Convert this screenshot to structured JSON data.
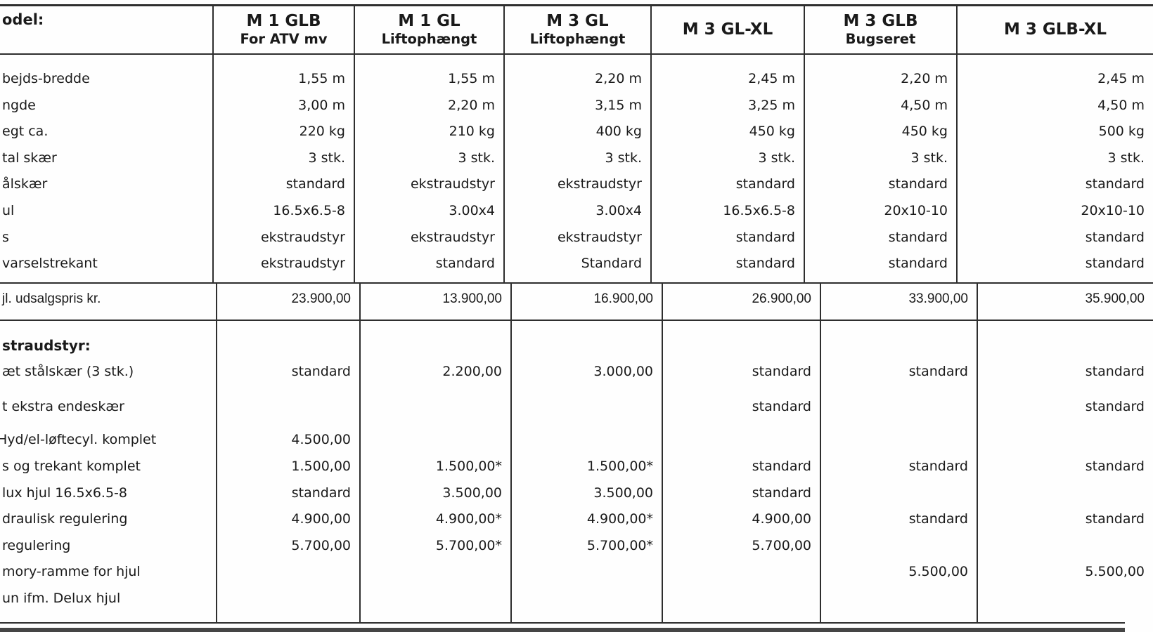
{
  "colors": {
    "border": "#2e2e2e",
    "text": "#1a1a1a",
    "bottom_bar": "#454545"
  },
  "header": {
    "model_label": "odel:",
    "columns": [
      {
        "name": "M 1 GLB",
        "subtitle": "For ATV mv"
      },
      {
        "name": "M 1 GL",
        "subtitle": "Liftophængt"
      },
      {
        "name": "M 3 GL",
        "subtitle": "Liftophængt"
      },
      {
        "name": "M 3 GL-XL",
        "subtitle": ""
      },
      {
        "name": "M 3 GLB",
        "subtitle": "Bugseret"
      },
      {
        "name": "M 3 GLB-XL",
        "subtitle": ""
      }
    ]
  },
  "specs": {
    "rows": [
      {
        "label": "bejds-bredde",
        "values": [
          "1,55 m",
          "1,55 m",
          "2,20 m",
          "2,45 m",
          "2,20 m",
          "2,45 m"
        ]
      },
      {
        "label": "ngde",
        "values": [
          "3,00 m",
          "2,20 m",
          "3,15 m",
          "3,25 m",
          "4,50 m",
          "4,50 m"
        ]
      },
      {
        "label": "egt ca.",
        "values": [
          "220 kg",
          "210 kg",
          "400 kg",
          "450 kg",
          "450 kg",
          "500 kg"
        ]
      },
      {
        "label": "tal skær",
        "values": [
          "3 stk.",
          "3 stk.",
          "3 stk.",
          "3 stk.",
          "3 stk.",
          "3 stk."
        ]
      },
      {
        "label": "ålskær",
        "values": [
          "standard",
          "ekstraudstyr",
          "ekstraudstyr",
          "standard",
          "standard",
          "standard"
        ]
      },
      {
        "label": "ul",
        "values": [
          "16.5x6.5-8",
          "3.00x4",
          "3.00x4",
          "16.5x6.5-8",
          "20x10-10",
          "20x10-10"
        ]
      },
      {
        "label": "s",
        "values": [
          "ekstraudstyr",
          "ekstraudstyr",
          "ekstraudstyr",
          "standard",
          "standard",
          "standard"
        ]
      },
      {
        "label": "varselstrekant",
        "values": [
          "ekstraudstyr",
          "standard",
          "Standard",
          "standard",
          "standard",
          "standard"
        ]
      }
    ]
  },
  "price": {
    "label": "jl. udsalgspris kr.",
    "values": [
      "23.900,00",
      "13.900,00",
      "16.900,00",
      "26.900,00",
      "33.900,00",
      "35.900,00"
    ]
  },
  "options": {
    "heading": "straudstyr:",
    "rows": [
      {
        "label": "æt stålskær (3 stk.)",
        "values": [
          "standard",
          "2.200,00",
          "3.000,00",
          "standard",
          "standard",
          "standard"
        ]
      },
      {
        "label": "t ekstra endeskær",
        "values": [
          "",
          "",
          "",
          "standard",
          "",
          "standard"
        ]
      },
      {
        "label": "Hyd/el-løftecyl. komplet",
        "values": [
          "4.500,00",
          "",
          "",
          "",
          "",
          ""
        ]
      },
      {
        "label": "s og trekant komplet",
        "values": [
          "1.500,00",
          "1.500,00*",
          "1.500,00*",
          "standard",
          "standard",
          "standard"
        ]
      },
      {
        "label": "lux hjul 16.5x6.5-8",
        "values": [
          "standard",
          "3.500,00",
          "3.500,00",
          "standard",
          "",
          ""
        ]
      },
      {
        "label": "draulisk regulering",
        "values": [
          "4.900,00",
          "4.900,00*",
          "4.900,00*",
          "4.900,00",
          "standard",
          "standard"
        ]
      },
      {
        "label": "regulering",
        "values": [
          "5.700,00",
          "5.700,00*",
          "5.700,00*",
          "5.700,00",
          "",
          ""
        ]
      },
      {
        "label": "mory-ramme for hjul",
        "values": [
          "",
          "",
          "",
          "",
          "5.500,00",
          "5.500,00"
        ]
      },
      {
        "label": "un ifm. Delux hjul",
        "values": [
          "",
          "",
          "",
          "",
          "",
          ""
        ]
      }
    ]
  }
}
